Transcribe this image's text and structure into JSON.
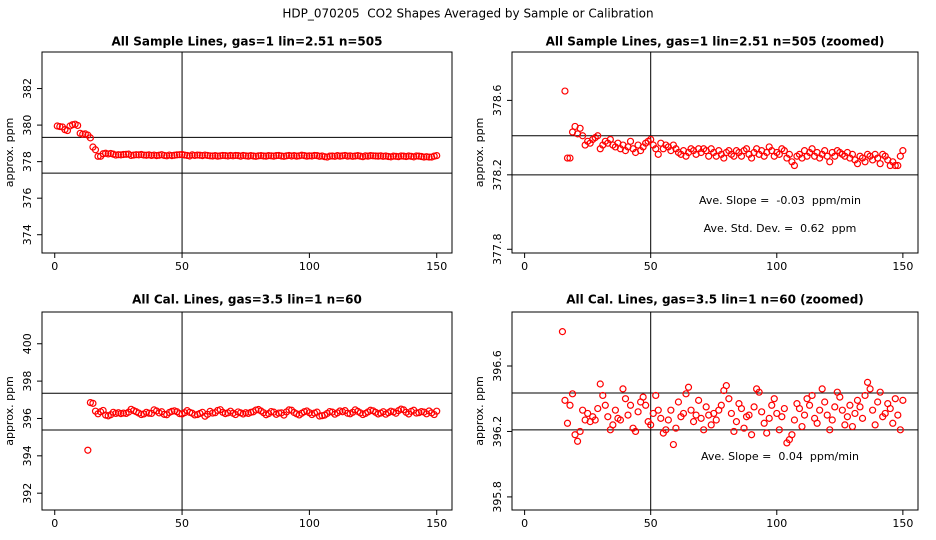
{
  "title": "HDP_070205  CO2 Shapes Averaged by Sample or Calibration",
  "chart_data": [
    {
      "type": "scatter",
      "title": "All Sample Lines, gas=1 lin=2.51 n=505",
      "y_label": "approx. ppm",
      "color": "#ff0000",
      "xlim": [
        -5,
        156
      ],
      "ylim": [
        373,
        384
      ],
      "xticks": [
        0,
        50,
        100,
        150
      ],
      "yticks": [
        374,
        376,
        378,
        380,
        382
      ],
      "hlines": [
        379.33,
        377.37
      ],
      "vline": 50,
      "x": [
        1,
        2,
        3,
        4,
        5,
        6,
        7,
        8,
        9,
        10,
        11,
        12,
        13,
        14,
        15,
        16,
        17,
        18,
        19,
        20,
        21,
        22,
        23,
        24,
        25,
        26,
        27,
        28,
        29,
        30,
        31,
        32,
        33,
        34,
        35,
        36,
        37,
        38,
        39,
        40,
        41,
        42,
        43,
        44,
        45,
        46,
        47,
        48,
        49,
        50,
        51,
        52,
        53,
        54,
        55,
        56,
        57,
        58,
        59,
        60,
        61,
        62,
        63,
        64,
        65,
        66,
        67,
        68,
        69,
        70,
        71,
        72,
        73,
        74,
        75,
        76,
        77,
        78,
        79,
        80,
        81,
        82,
        83,
        84,
        85,
        86,
        87,
        88,
        89,
        90,
        91,
        92,
        93,
        94,
        95,
        96,
        97,
        98,
        99,
        100,
        101,
        102,
        103,
        104,
        105,
        106,
        107,
        108,
        109,
        110,
        111,
        112,
        113,
        114,
        115,
        116,
        117,
        118,
        119,
        120,
        121,
        122,
        123,
        124,
        125,
        126,
        127,
        128,
        129,
        130,
        131,
        132,
        133,
        134,
        135,
        136,
        137,
        138,
        139,
        140,
        141,
        142,
        143,
        144,
        145,
        146,
        147,
        148,
        149,
        150
      ],
      "values": [
        379.95,
        379.92,
        379.9,
        379.75,
        379.7,
        379.95,
        380.02,
        380.05,
        379.98,
        379.55,
        379.5,
        379.52,
        379.45,
        379.3,
        378.8,
        378.65,
        378.29,
        378.29,
        378.43,
        378.46,
        378.42,
        378.45,
        378.41,
        378.36,
        378.38,
        378.37,
        378.39,
        378.4,
        378.41,
        378.34,
        378.36,
        378.38,
        378.37,
        378.39,
        378.36,
        378.35,
        378.37,
        378.34,
        378.36,
        378.33,
        378.35,
        378.38,
        378.34,
        378.32,
        378.36,
        378.33,
        378.35,
        378.37,
        378.38,
        378.39,
        378.36,
        378.34,
        378.31,
        378.37,
        378.34,
        378.36,
        378.35,
        378.33,
        378.36,
        378.34,
        378.32,
        378.31,
        378.33,
        378.3,
        378.32,
        378.34,
        378.33,
        378.31,
        378.34,
        378.32,
        378.34,
        378.33,
        378.3,
        378.34,
        378.32,
        378.3,
        378.33,
        378.31,
        378.29,
        378.32,
        378.33,
        378.31,
        378.3,
        378.33,
        378.32,
        378.3,
        378.33,
        378.34,
        378.31,
        378.29,
        378.32,
        378.34,
        378.31,
        378.33,
        378.3,
        378.32,
        378.35,
        378.33,
        378.3,
        378.32,
        378.31,
        378.34,
        378.33,
        378.29,
        378.31,
        378.27,
        378.25,
        378.3,
        378.31,
        378.29,
        378.33,
        378.3,
        378.32,
        378.34,
        378.3,
        378.32,
        378.29,
        378.31,
        378.33,
        378.3,
        378.27,
        378.32,
        378.3,
        378.33,
        378.32,
        378.31,
        378.3,
        378.32,
        378.29,
        378.31,
        378.28,
        378.26,
        378.3,
        378.29,
        378.27,
        378.31,
        378.3,
        378.28,
        378.31,
        378.29,
        378.26,
        378.31,
        378.3,
        378.28,
        378.25,
        378.27,
        378.25,
        378.25,
        378.3,
        378.33
      ]
    },
    {
      "type": "scatter",
      "title": "All Sample Lines, gas=1 lin=2.51 n=505 (zoomed)",
      "y_label": "approx. ppm",
      "color": "#ff0000",
      "xlim": [
        -5,
        156
      ],
      "ylim": [
        377.78,
        378.86
      ],
      "xticks": [
        0,
        50,
        100,
        150
      ],
      "yticks": [
        377.8,
        378.2,
        378.6
      ],
      "hlines": [
        378.41,
        378.2
      ],
      "vline": 50,
      "annotations": [
        "Ave. Slope =  -0.03  ppm/min",
        "Ave. Std. Dev. =  0.62  ppm"
      ],
      "x": [
        16,
        17,
        18,
        19,
        20,
        21,
        22,
        23,
        24,
        25,
        26,
        27,
        28,
        29,
        30,
        31,
        32,
        33,
        34,
        35,
        36,
        37,
        38,
        39,
        40,
        41,
        42,
        43,
        44,
        45,
        46,
        47,
        48,
        49,
        50,
        51,
        52,
        53,
        54,
        55,
        56,
        57,
        58,
        59,
        60,
        61,
        62,
        63,
        64,
        65,
        66,
        67,
        68,
        69,
        70,
        71,
        72,
        73,
        74,
        75,
        76,
        77,
        78,
        79,
        80,
        81,
        82,
        83,
        84,
        85,
        86,
        87,
        88,
        89,
        90,
        91,
        92,
        93,
        94,
        95,
        96,
        97,
        98,
        99,
        100,
        101,
        102,
        103,
        104,
        105,
        106,
        107,
        108,
        109,
        110,
        111,
        112,
        113,
        114,
        115,
        116,
        117,
        118,
        119,
        120,
        121,
        122,
        123,
        124,
        125,
        126,
        127,
        128,
        129,
        130,
        131,
        132,
        133,
        134,
        135,
        136,
        137,
        138,
        139,
        140,
        141,
        142,
        143,
        144,
        145,
        146,
        147,
        148,
        149,
        150
      ],
      "values": [
        378.65,
        378.29,
        378.29,
        378.43,
        378.46,
        378.42,
        378.45,
        378.41,
        378.36,
        378.38,
        378.37,
        378.39,
        378.4,
        378.41,
        378.34,
        378.36,
        378.38,
        378.37,
        378.39,
        378.36,
        378.35,
        378.37,
        378.34,
        378.36,
        378.33,
        378.35,
        378.38,
        378.34,
        378.32,
        378.36,
        378.33,
        378.35,
        378.37,
        378.38,
        378.39,
        378.36,
        378.34,
        378.31,
        378.37,
        378.34,
        378.36,
        378.35,
        378.33,
        378.36,
        378.34,
        378.32,
        378.31,
        378.33,
        378.3,
        378.32,
        378.34,
        378.33,
        378.31,
        378.34,
        378.32,
        378.34,
        378.33,
        378.3,
        378.34,
        378.32,
        378.3,
        378.33,
        378.31,
        378.29,
        378.32,
        378.33,
        378.31,
        378.3,
        378.33,
        378.32,
        378.3,
        378.33,
        378.34,
        378.31,
        378.29,
        378.32,
        378.34,
        378.31,
        378.33,
        378.3,
        378.32,
        378.35,
        378.33,
        378.3,
        378.32,
        378.31,
        378.34,
        378.33,
        378.29,
        378.31,
        378.27,
        378.25,
        378.3,
        378.31,
        378.29,
        378.33,
        378.3,
        378.32,
        378.34,
        378.3,
        378.32,
        378.29,
        378.31,
        378.33,
        378.3,
        378.27,
        378.32,
        378.3,
        378.33,
        378.32,
        378.31,
        378.3,
        378.32,
        378.29,
        378.31,
        378.28,
        378.26,
        378.3,
        378.29,
        378.27,
        378.31,
        378.3,
        378.28,
        378.31,
        378.29,
        378.26,
        378.31,
        378.3,
        378.28,
        378.25,
        378.27,
        378.25,
        378.25,
        378.3,
        378.33
      ]
    },
    {
      "type": "scatter",
      "title": "All Cal. Lines, gas=3.5 lin=1 n=60",
      "y_label": "approx. ppm",
      "color": "#ff0000",
      "xlim": [
        -5,
        156
      ],
      "ylim": [
        391.1,
        401.7
      ],
      "xticks": [
        0,
        50,
        100,
        150
      ],
      "yticks": [
        392,
        394,
        396,
        398,
        400
      ],
      "hlines": [
        397.35,
        395.38
      ],
      "vline": 50,
      "x": [
        13,
        14,
        15,
        16,
        17,
        18,
        19,
        20,
        21,
        22,
        23,
        24,
        25,
        26,
        27,
        28,
        29,
        30,
        31,
        32,
        33,
        34,
        35,
        36,
        37,
        38,
        39,
        40,
        41,
        42,
        43,
        44,
        45,
        46,
        47,
        48,
        49,
        50,
        51,
        52,
        53,
        54,
        55,
        56,
        57,
        58,
        59,
        60,
        61,
        62,
        63,
        64,
        65,
        66,
        67,
        68,
        69,
        70,
        71,
        72,
        73,
        74,
        75,
        76,
        77,
        78,
        79,
        80,
        81,
        82,
        83,
        84,
        85,
        86,
        87,
        88,
        89,
        90,
        91,
        92,
        93,
        94,
        95,
        96,
        97,
        98,
        99,
        100,
        101,
        102,
        103,
        104,
        105,
        106,
        107,
        108,
        109,
        110,
        111,
        112,
        113,
        114,
        115,
        116,
        117,
        118,
        119,
        120,
        121,
        122,
        123,
        124,
        125,
        126,
        127,
        128,
        129,
        130,
        131,
        132,
        133,
        134,
        135,
        136,
        137,
        138,
        139,
        140,
        141,
        142,
        143,
        144,
        145,
        146,
        147,
        148,
        149,
        150
      ],
      "values": [
        394.3,
        396.85,
        396.81,
        396.39,
        396.25,
        396.36,
        396.43,
        396.18,
        396.14,
        396.2,
        396.33,
        396.27,
        396.31,
        396.26,
        396.29,
        396.27,
        396.34,
        396.49,
        396.42,
        396.36,
        396.29,
        396.21,
        396.24,
        396.33,
        396.28,
        396.27,
        396.46,
        396.4,
        396.3,
        396.36,
        396.22,
        396.2,
        396.32,
        396.38,
        396.41,
        396.36,
        396.26,
        396.24,
        396.31,
        396.42,
        396.33,
        396.28,
        396.19,
        396.21,
        396.27,
        396.33,
        396.12,
        396.22,
        396.38,
        396.29,
        396.31,
        396.43,
        396.47,
        396.33,
        396.26,
        396.3,
        396.39,
        396.28,
        396.21,
        396.35,
        396.3,
        396.24,
        396.31,
        396.27,
        396.33,
        396.36,
        396.45,
        396.48,
        396.4,
        396.31,
        396.2,
        396.26,
        396.37,
        396.34,
        396.22,
        396.29,
        396.3,
        396.18,
        396.35,
        396.46,
        396.44,
        396.32,
        396.25,
        396.19,
        396.28,
        396.36,
        396.4,
        396.31,
        396.21,
        396.29,
        396.34,
        396.13,
        396.15,
        396.18,
        396.27,
        396.37,
        396.34,
        396.23,
        396.3,
        396.4,
        396.36,
        396.42,
        396.28,
        396.25,
        396.33,
        396.46,
        396.38,
        396.3,
        396.21,
        396.27,
        396.35,
        396.44,
        396.41,
        396.33,
        396.24,
        396.29,
        396.36,
        396.23,
        396.31,
        396.39,
        396.35,
        396.28,
        396.42,
        396.5,
        396.46,
        396.33,
        396.24,
        396.38,
        396.44,
        396.29,
        396.31,
        396.37,
        396.34,
        396.25,
        396.4,
        396.3,
        396.21,
        396.39
      ]
    },
    {
      "type": "scatter",
      "title": "All Cal. Lines, gas=3.5 lin=1 n=60 (zoomed)",
      "y_label": "approx. ppm",
      "color": "#ff0000",
      "xlim": [
        -5,
        156
      ],
      "ylim": [
        395.72,
        396.93
      ],
      "xticks": [
        0,
        50,
        100,
        150
      ],
      "yticks": [
        395.8,
        396.2,
        396.6
      ],
      "hlines": [
        396.435,
        396.21
      ],
      "vline": 50,
      "annotations": [
        "Ave. Slope =  0.04  ppm/min"
      ],
      "x": [
        15,
        16,
        17,
        18,
        19,
        20,
        21,
        22,
        23,
        24,
        25,
        26,
        27,
        28,
        29,
        30,
        31,
        32,
        33,
        34,
        35,
        36,
        37,
        38,
        39,
        40,
        41,
        42,
        43,
        44,
        45,
        46,
        47,
        48,
        49,
        50,
        51,
        52,
        53,
        54,
        55,
        56,
        57,
        58,
        59,
        60,
        61,
        62,
        63,
        64,
        65,
        66,
        67,
        68,
        69,
        70,
        71,
        72,
        73,
        74,
        75,
        76,
        77,
        78,
        79,
        80,
        81,
        82,
        83,
        84,
        85,
        86,
        87,
        88,
        89,
        90,
        91,
        92,
        93,
        94,
        95,
        96,
        97,
        98,
        99,
        100,
        101,
        102,
        103,
        104,
        105,
        106,
        107,
        108,
        109,
        110,
        111,
        112,
        113,
        114,
        115,
        116,
        117,
        118,
        119,
        120,
        121,
        122,
        123,
        124,
        125,
        126,
        127,
        128,
        129,
        130,
        131,
        132,
        133,
        134,
        135,
        136,
        137,
        138,
        139,
        140,
        141,
        142,
        143,
        144,
        145,
        146,
        147,
        148,
        149,
        150
      ],
      "values": [
        396.81,
        396.39,
        396.25,
        396.36,
        396.43,
        396.18,
        396.14,
        396.2,
        396.33,
        396.27,
        396.31,
        396.26,
        396.29,
        396.27,
        396.34,
        396.49,
        396.42,
        396.36,
        396.29,
        396.21,
        396.24,
        396.33,
        396.28,
        396.27,
        396.46,
        396.4,
        396.3,
        396.36,
        396.22,
        396.2,
        396.32,
        396.38,
        396.41,
        396.36,
        396.26,
        396.24,
        396.31,
        396.42,
        396.33,
        396.28,
        396.19,
        396.21,
        396.27,
        396.33,
        396.12,
        396.22,
        396.38,
        396.29,
        396.31,
        396.43,
        396.47,
        396.33,
        396.26,
        396.3,
        396.39,
        396.28,
        396.21,
        396.35,
        396.3,
        396.24,
        396.31,
        396.27,
        396.33,
        396.36,
        396.45,
        396.48,
        396.4,
        396.31,
        396.2,
        396.26,
        396.37,
        396.34,
        396.22,
        396.29,
        396.3,
        396.18,
        396.35,
        396.46,
        396.44,
        396.32,
        396.25,
        396.19,
        396.28,
        396.36,
        396.4,
        396.31,
        396.21,
        396.29,
        396.34,
        396.13,
        396.15,
        396.18,
        396.27,
        396.37,
        396.34,
        396.23,
        396.3,
        396.4,
        396.36,
        396.42,
        396.28,
        396.25,
        396.33,
        396.46,
        396.38,
        396.3,
        396.21,
        396.27,
        396.35,
        396.44,
        396.41,
        396.33,
        396.24,
        396.29,
        396.36,
        396.23,
        396.31,
        396.39,
        396.35,
        396.28,
        396.42,
        396.5,
        396.46,
        396.33,
        396.24,
        396.38,
        396.44,
        396.29,
        396.31,
        396.37,
        396.34,
        396.25,
        396.4,
        396.3,
        396.21,
        396.39
      ]
    }
  ]
}
